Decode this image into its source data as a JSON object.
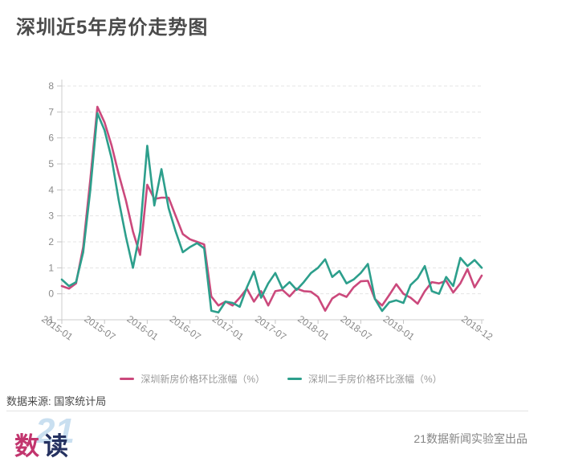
{
  "title": "深圳近5年房价走势图",
  "source_text": "数据来源: 国家统计局",
  "footer": {
    "credit": "21数据新闻实验室出品",
    "logo": {
      "ghost": "21",
      "ghost_color": "#c9dff0",
      "char1": "数",
      "char1_color": "#c2356e",
      "char2": "读",
      "char2_color": "#253160"
    }
  },
  "chart_data": {
    "type": "line",
    "title": "深圳近5年房价走势图",
    "xlabel": "",
    "ylabel": "",
    "ylim": [
      -1,
      8
    ],
    "yticks": [
      -1,
      0,
      1,
      2,
      3,
      4,
      5,
      6,
      7,
      8
    ],
    "grid": "horizontal-dashed",
    "legend_position": "bottom-center",
    "x_months": [
      "2015-01",
      "2015-02",
      "2015-03",
      "2015-04",
      "2015-05",
      "2015-06",
      "2015-07",
      "2015-08",
      "2015-09",
      "2015-10",
      "2015-11",
      "2015-12",
      "2016-01",
      "2016-02",
      "2016-03",
      "2016-04",
      "2016-05",
      "2016-06",
      "2016-07",
      "2016-08",
      "2016-09",
      "2016-10",
      "2016-11",
      "2016-12",
      "2017-01",
      "2017-02",
      "2017-03",
      "2017-04",
      "2017-05",
      "2017-06",
      "2017-07",
      "2017-08",
      "2017-09",
      "2017-10",
      "2017-11",
      "2017-12",
      "2018-01",
      "2018-02",
      "2018-03",
      "2018-04",
      "2018-05",
      "2018-06",
      "2018-07",
      "2018-08",
      "2018-09",
      "2018-10",
      "2018-11",
      "2018-12",
      "2019-01",
      "2019-02",
      "2019-03",
      "2019-04",
      "2019-05",
      "2019-06",
      "2019-07",
      "2019-08",
      "2019-09",
      "2019-10",
      "2019-11",
      "2019-12"
    ],
    "xtick_indices": [
      0,
      6,
      12,
      18,
      24,
      30,
      36,
      42,
      48,
      59
    ],
    "xtick_labels": [
      "2015-01",
      "2015-07",
      "2016-01",
      "2016-07",
      "2017-01",
      "2017-07",
      "2018-01",
      "2018-07",
      "2019-01",
      "2019-12"
    ],
    "series": [
      {
        "name": "深圳新房价格环比涨幅（%）",
        "color": "#cb497c",
        "values": [
          0.3,
          0.2,
          0.4,
          1.8,
          4.4,
          7.2,
          6.6,
          5.7,
          4.6,
          3.6,
          2.4,
          1.5,
          4.2,
          3.65,
          3.7,
          3.7,
          3.0,
          2.3,
          2.1,
          2.0,
          1.9,
          -0.1,
          -0.45,
          -0.3,
          -0.45,
          -0.15,
          0.2,
          -0.3,
          0.1,
          -0.45,
          0.1,
          0.15,
          -0.1,
          0.2,
          0.1,
          0.08,
          -0.12,
          -0.65,
          -0.18,
          0.0,
          -0.12,
          0.25,
          0.48,
          0.5,
          -0.2,
          -0.45,
          -0.05,
          0.37,
          0.0,
          -0.15,
          -0.38,
          0.1,
          0.45,
          0.4,
          0.5,
          0.05,
          0.4,
          0.95,
          0.25,
          0.7
        ]
      },
      {
        "name": "深圳二手房价格环比涨幅（%）",
        "color": "#2d9f8c",
        "values": [
          0.55,
          0.3,
          0.45,
          1.6,
          4.0,
          6.95,
          6.3,
          5.2,
          3.6,
          2.2,
          1.0,
          2.4,
          5.7,
          3.4,
          4.8,
          3.3,
          2.4,
          1.6,
          1.8,
          1.95,
          1.75,
          -0.65,
          -0.72,
          -0.3,
          -0.35,
          -0.5,
          0.25,
          0.86,
          -0.15,
          0.4,
          0.8,
          0.2,
          0.45,
          0.15,
          0.45,
          0.8,
          1.0,
          1.33,
          0.65,
          0.88,
          0.4,
          0.55,
          0.8,
          1.15,
          -0.2,
          -0.66,
          -0.33,
          -0.25,
          -0.35,
          0.34,
          0.6,
          1.07,
          0.1,
          0.0,
          0.65,
          0.3,
          1.38,
          1.07,
          1.3,
          1.0
        ]
      }
    ]
  }
}
